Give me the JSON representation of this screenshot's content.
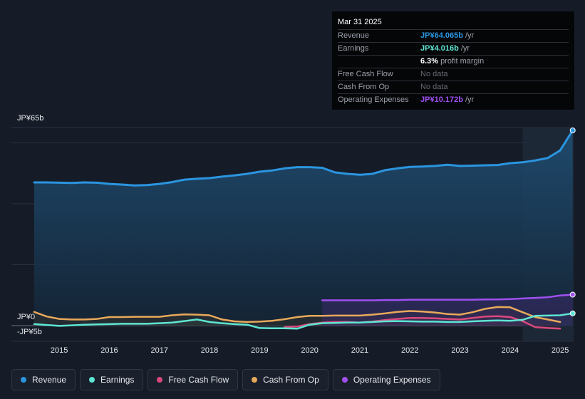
{
  "tooltip": {
    "date": "Mar 31 2025",
    "rows": [
      {
        "label": "Revenue",
        "value": "JP¥64.065b",
        "unit": "/yr",
        "color": "#2b95e0"
      },
      {
        "label": "Earnings",
        "value": "JP¥4.016b",
        "unit": "/yr",
        "color": "#5ee6d3"
      },
      {
        "label": "",
        "value": "6.3%",
        "unit": "profit margin",
        "color": "#ffffff"
      },
      {
        "label": "Free Cash Flow",
        "value": "No data",
        "unit": "",
        "color": "#666b74"
      },
      {
        "label": "Cash From Op",
        "value": "No data",
        "unit": "",
        "color": "#666b74"
      },
      {
        "label": "Operating Expenses",
        "value": "JP¥10.172b",
        "unit": "/yr",
        "color": "#a050f0"
      }
    ]
  },
  "axis": {
    "top_label": "JP¥65b",
    "zero_label": "JP¥0",
    "neg_label": "-JP¥5b"
  },
  "legend": [
    {
      "label": "Revenue",
      "color": "#2b95e0"
    },
    {
      "label": "Earnings",
      "color": "#5ee6d3"
    },
    {
      "label": "Free Cash Flow",
      "color": "#d9497d"
    },
    {
      "label": "Cash From Op",
      "color": "#e8a95a"
    },
    {
      "label": "Operating Expenses",
      "color": "#a050f0"
    }
  ],
  "chart_data": {
    "type": "line",
    "title": "",
    "xlabel": "",
    "ylabel": "",
    "ylim": [
      -5,
      65
    ],
    "x_ticks": [
      "2015",
      "2016",
      "2017",
      "2018",
      "2019",
      "2020",
      "2021",
      "2022",
      "2023",
      "2024",
      "2025"
    ],
    "highlight_start": 2024.25,
    "series": [
      {
        "name": "Revenue",
        "color": "#2b95e0",
        "fill": true,
        "x": [
          2014.5,
          2014.75,
          2015.0,
          2015.25,
          2015.5,
          2015.75,
          2016.0,
          2016.25,
          2016.5,
          2016.75,
          2017.0,
          2017.25,
          2017.5,
          2017.75,
          2018.0,
          2018.25,
          2018.5,
          2018.75,
          2019.0,
          2019.25,
          2019.5,
          2019.75,
          2020.0,
          2020.25,
          2020.5,
          2020.75,
          2021.0,
          2021.25,
          2021.5,
          2021.75,
          2022.0,
          2022.25,
          2022.5,
          2022.75,
          2023.0,
          2023.25,
          2023.5,
          2023.75,
          2024.0,
          2024.25,
          2024.5,
          2024.75,
          2025.0,
          2025.25
        ],
        "values": [
          47.0,
          47.0,
          46.9,
          46.8,
          47.0,
          46.9,
          46.5,
          46.3,
          46.0,
          46.1,
          46.5,
          47.1,
          47.9,
          48.2,
          48.4,
          48.9,
          49.3,
          49.8,
          50.5,
          50.9,
          51.6,
          52.0,
          52.0,
          51.8,
          50.3,
          49.8,
          49.5,
          49.8,
          51.0,
          51.6,
          52.1,
          52.2,
          52.4,
          52.8,
          52.4,
          52.5,
          52.6,
          52.7,
          53.3,
          53.6,
          54.2,
          55.0,
          57.5,
          64.065
        ]
      },
      {
        "name": "Earnings",
        "color": "#5ee6d3",
        "fill": true,
        "x": [
          2014.5,
          2014.75,
          2015.0,
          2015.25,
          2015.5,
          2015.75,
          2016.0,
          2016.25,
          2016.5,
          2016.75,
          2017.0,
          2017.25,
          2017.5,
          2017.75,
          2018.0,
          2018.25,
          2018.5,
          2018.75,
          2019.0,
          2019.25,
          2019.5,
          2019.75,
          2020.0,
          2020.25,
          2020.5,
          2020.75,
          2021.0,
          2021.25,
          2021.5,
          2021.75,
          2022.0,
          2022.25,
          2022.5,
          2022.75,
          2023.0,
          2023.25,
          2023.5,
          2023.75,
          2024.0,
          2024.25,
          2024.5,
          2024.75,
          2025.0,
          2025.25
        ],
        "values": [
          0.5,
          0.2,
          -0.1,
          0.1,
          0.3,
          0.4,
          0.5,
          0.6,
          0.6,
          0.6,
          0.8,
          1.0,
          1.5,
          2.0,
          1.2,
          0.8,
          0.5,
          0.3,
          -0.8,
          -0.9,
          -0.9,
          -1.0,
          0.3,
          0.8,
          0.9,
          1.0,
          1.0,
          1.2,
          1.4,
          1.5,
          1.4,
          1.3,
          1.3,
          1.2,
          1.2,
          1.4,
          1.6,
          1.7,
          1.6,
          1.9,
          3.2,
          3.3,
          3.4,
          4.016
        ]
      },
      {
        "name": "Free Cash Flow",
        "color": "#d9497d",
        "fill": true,
        "x": [
          2019.5,
          2019.75,
          2020.0,
          2020.25,
          2020.5,
          2020.75,
          2021.0,
          2021.25,
          2021.5,
          2021.75,
          2022.0,
          2022.25,
          2022.5,
          2022.75,
          2023.0,
          2023.25,
          2023.5,
          2023.75,
          2024.0,
          2024.25,
          2024.5,
          2024.75,
          2025.0
        ],
        "values": [
          -0.5,
          -0.3,
          0.5,
          1.0,
          1.2,
          1.2,
          1.0,
          1.3,
          1.8,
          2.2,
          2.5,
          2.5,
          2.4,
          2.2,
          2.0,
          2.5,
          3.0,
          3.1,
          2.8,
          1.5,
          -0.5,
          -0.8,
          -1.0
        ]
      },
      {
        "name": "Cash From Op",
        "color": "#e8a95a",
        "fill": true,
        "x": [
          2014.5,
          2014.75,
          2015.0,
          2015.25,
          2015.5,
          2015.75,
          2016.0,
          2016.25,
          2016.5,
          2016.75,
          2017.0,
          2017.25,
          2017.5,
          2017.75,
          2018.0,
          2018.25,
          2018.5,
          2018.75,
          2019.0,
          2019.25,
          2019.5,
          2019.75,
          2020.0,
          2020.25,
          2020.5,
          2020.75,
          2021.0,
          2021.25,
          2021.5,
          2021.75,
          2022.0,
          2022.25,
          2022.5,
          2022.75,
          2023.0,
          2023.25,
          2023.5,
          2023.75,
          2024.0,
          2024.25,
          2024.5,
          2024.75,
          2025.0
        ],
        "values": [
          4.5,
          3.0,
          2.2,
          2.0,
          2.0,
          2.2,
          2.8,
          2.8,
          2.9,
          2.9,
          2.9,
          3.4,
          3.7,
          3.6,
          3.4,
          2.0,
          1.4,
          1.2,
          1.3,
          1.6,
          2.1,
          2.8,
          3.2,
          3.2,
          3.3,
          3.3,
          3.3,
          3.6,
          4.0,
          4.5,
          4.8,
          4.6,
          4.3,
          3.8,
          3.6,
          4.4,
          5.5,
          6.1,
          6.0,
          4.4,
          2.8,
          2.0,
          1.2
        ]
      },
      {
        "name": "Operating Expenses",
        "color": "#a050f0",
        "fill": true,
        "x": [
          2020.25,
          2020.5,
          2020.75,
          2021.0,
          2021.25,
          2021.5,
          2021.75,
          2022.0,
          2022.25,
          2022.5,
          2022.75,
          2023.0,
          2023.25,
          2023.5,
          2023.75,
          2024.0,
          2024.25,
          2024.5,
          2024.75,
          2025.0,
          2025.25
        ],
        "values": [
          8.3,
          8.3,
          8.3,
          8.3,
          8.3,
          8.4,
          8.4,
          8.5,
          8.5,
          8.5,
          8.5,
          8.5,
          8.5,
          8.6,
          8.6,
          8.7,
          8.9,
          9.1,
          9.3,
          9.9,
          10.172
        ]
      }
    ]
  }
}
